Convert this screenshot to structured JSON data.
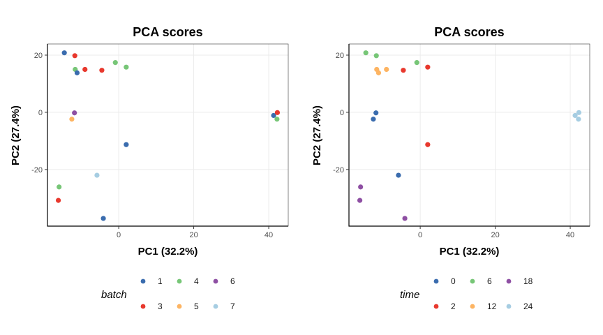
{
  "chart_data": [
    {
      "type": "scatter",
      "title": "PCA scores",
      "xlabel": "PC1 (32.2%)",
      "ylabel": "PC2 (27.4%)",
      "xlim": [
        -19,
        45.2
      ],
      "ylim": [
        -39.8,
        23.9
      ],
      "xticks": [
        0,
        20,
        40
      ],
      "yticks": [
        -20,
        0,
        20
      ],
      "grid": true,
      "legend": {
        "title": "batch",
        "placement": "bottom",
        "entries": [
          {
            "label": "1",
            "color": "#3a6cae"
          },
          {
            "label": "3",
            "color": "#e8382d"
          },
          {
            "label": "4",
            "color": "#77c677"
          },
          {
            "label": "5",
            "color": "#fdb462"
          },
          {
            "label": "6",
            "color": "#8e4fa3"
          },
          {
            "label": "7",
            "color": "#a6cde2"
          }
        ]
      },
      "points": [
        {
          "x": -14.5,
          "y": 20.8,
          "group": "1"
        },
        {
          "x": -11.7,
          "y": 19.8,
          "group": "3"
        },
        {
          "x": -11.6,
          "y": 15.0,
          "group": "4"
        },
        {
          "x": -11.1,
          "y": 13.8,
          "group": "1"
        },
        {
          "x": -9.0,
          "y": 15.0,
          "group": "3"
        },
        {
          "x": -4.5,
          "y": 14.7,
          "group": "3"
        },
        {
          "x": -0.9,
          "y": 17.4,
          "group": "4"
        },
        {
          "x": 2.0,
          "y": 15.8,
          "group": "4"
        },
        {
          "x": -11.8,
          "y": -0.2,
          "group": "6"
        },
        {
          "x": -12.5,
          "y": -2.4,
          "group": "5"
        },
        {
          "x": 2.0,
          "y": -11.3,
          "group": "1"
        },
        {
          "x": -5.8,
          "y": -22.0,
          "group": "7"
        },
        {
          "x": -15.9,
          "y": -26.1,
          "group": "4"
        },
        {
          "x": -16.1,
          "y": -30.8,
          "group": "3"
        },
        {
          "x": -4.1,
          "y": -37.1,
          "group": "1"
        },
        {
          "x": 41.3,
          "y": -1.1,
          "group": "1"
        },
        {
          "x": 42.3,
          "y": -0.1,
          "group": "3"
        },
        {
          "x": 42.2,
          "y": -2.4,
          "group": "4"
        }
      ]
    },
    {
      "type": "scatter",
      "title": "PCA scores",
      "xlabel": "PC1 (32.2%)",
      "ylabel": "PC2 (27.4%)",
      "xlim": [
        -19,
        45.2
      ],
      "ylim": [
        -39.8,
        23.9
      ],
      "xticks": [
        0,
        20,
        40
      ],
      "yticks": [
        -20,
        0,
        20
      ],
      "grid": true,
      "legend": {
        "title": "time",
        "placement": "bottom",
        "entries": [
          {
            "label": "0",
            "color": "#3a6cae"
          },
          {
            "label": "2",
            "color": "#e8382d"
          },
          {
            "label": "6",
            "color": "#77c677"
          },
          {
            "label": "12",
            "color": "#fdb462"
          },
          {
            "label": "18",
            "color": "#8e4fa3"
          },
          {
            "label": "24",
            "color": "#a6cde2"
          }
        ]
      },
      "points": [
        {
          "x": -14.5,
          "y": 20.8,
          "group": "6"
        },
        {
          "x": -11.7,
          "y": 19.8,
          "group": "6"
        },
        {
          "x": -11.6,
          "y": 15.0,
          "group": "12"
        },
        {
          "x": -11.1,
          "y": 13.8,
          "group": "12"
        },
        {
          "x": -9.0,
          "y": 15.0,
          "group": "12"
        },
        {
          "x": -4.5,
          "y": 14.7,
          "group": "2"
        },
        {
          "x": -0.9,
          "y": 17.4,
          "group": "6"
        },
        {
          "x": 2.0,
          "y": 15.8,
          "group": "2"
        },
        {
          "x": -11.8,
          "y": -0.2,
          "group": "0"
        },
        {
          "x": -12.5,
          "y": -2.4,
          "group": "0"
        },
        {
          "x": 2.0,
          "y": -11.3,
          "group": "2"
        },
        {
          "x": -5.8,
          "y": -22.0,
          "group": "0"
        },
        {
          "x": -15.9,
          "y": -26.1,
          "group": "18"
        },
        {
          "x": -16.1,
          "y": -30.8,
          "group": "18"
        },
        {
          "x": -4.1,
          "y": -37.1,
          "group": "18"
        },
        {
          "x": 41.3,
          "y": -1.1,
          "group": "24"
        },
        {
          "x": 42.3,
          "y": -0.1,
          "group": "24"
        },
        {
          "x": 42.2,
          "y": -2.4,
          "group": "24"
        }
      ]
    }
  ]
}
